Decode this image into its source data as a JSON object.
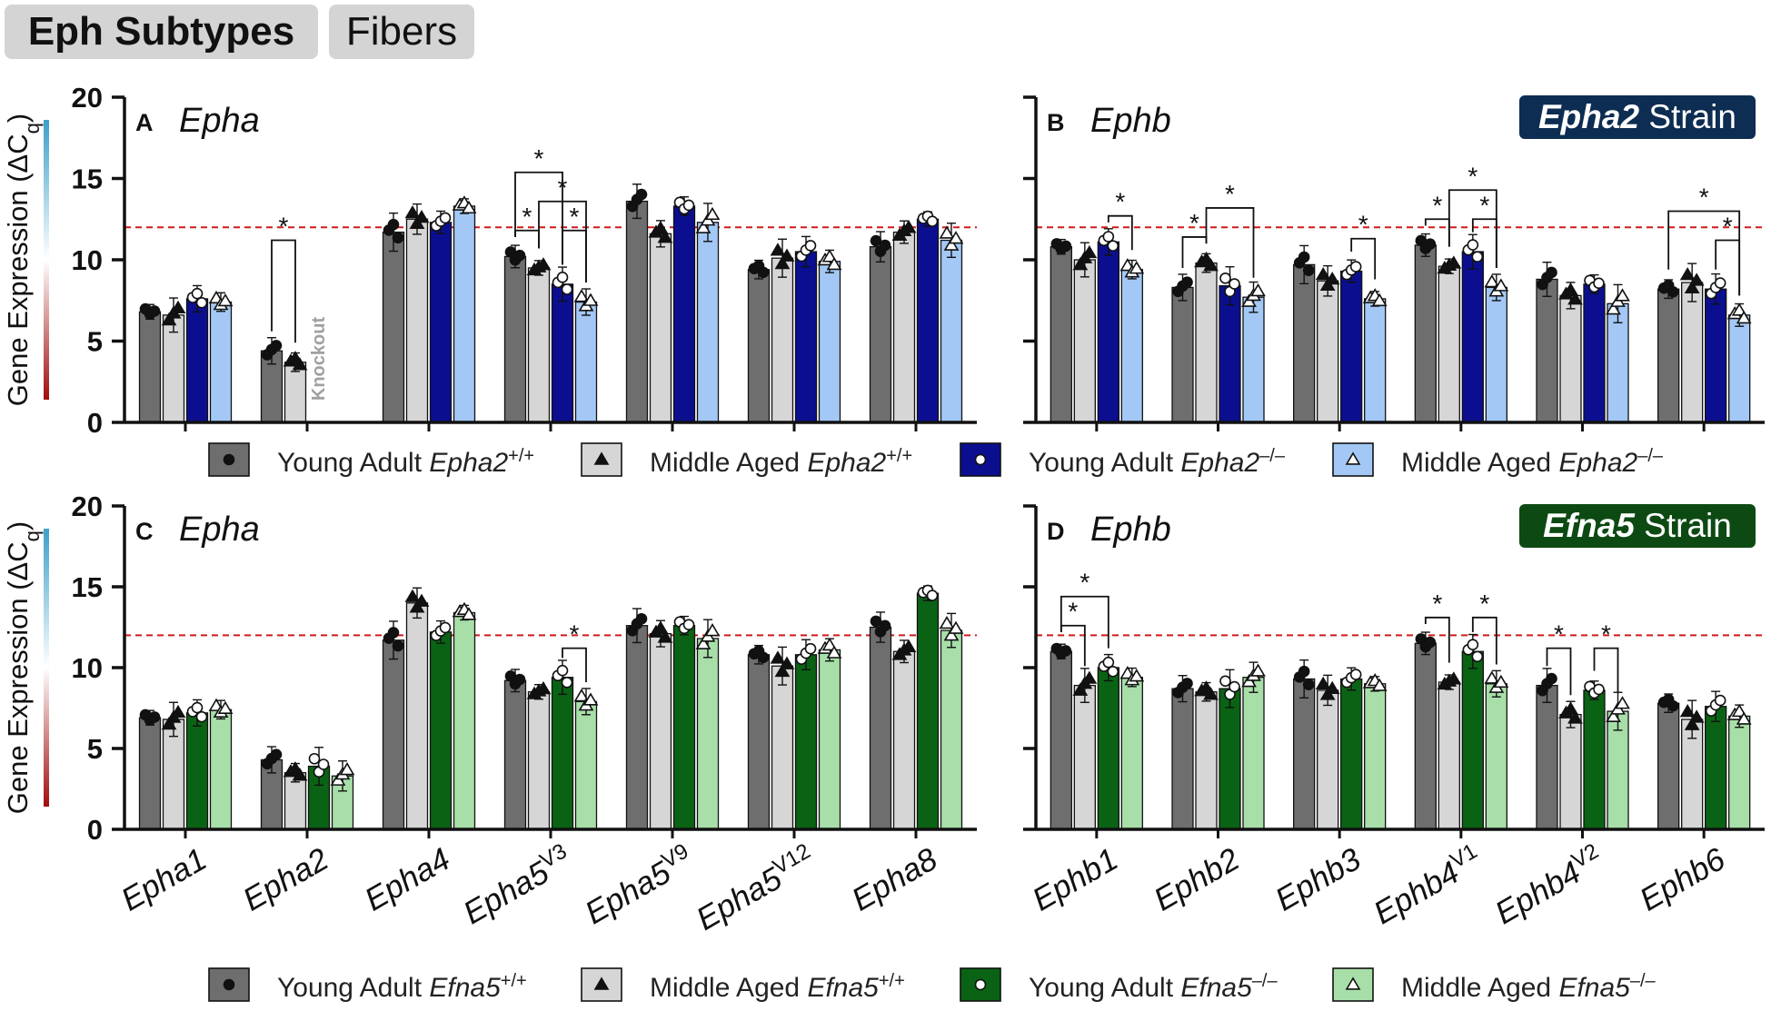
{
  "tabs": {
    "active": "Eph Subtypes",
    "other": "Fibers"
  },
  "threshold": 12,
  "y_label": "Gene Expression (ΔC",
  "y_label_sub": "q",
  "y_label_close": ")",
  "colors": {
    "young_wt": "#6e6e6e",
    "aged_wt": "#d6d6d6",
    "epha2_young_ko": "#0b0f8f",
    "epha2_aged_ko": "#a3c8f5",
    "efna5_young_ko": "#0a6314",
    "efna5_aged_ko": "#a8dfa9",
    "threshold": "#d11a1a",
    "epha2_badge": "#0d2d52",
    "efna5_badge": "#0d4a13"
  },
  "strain_badges": [
    {
      "bold": "Epha2",
      "rest": " Strain"
    },
    {
      "bold": "Efna5",
      "rest": " Strain"
    }
  ],
  "legends": [
    {
      "items": [
        {
          "pre": "Young Adult ",
          "gene": "Epha2",
          "sup": "+/+",
          "marker": "circle-dark"
        },
        {
          "pre": "Middle Aged ",
          "gene": "Epha2",
          "sup": "+/+",
          "marker": "triangle-dark"
        },
        {
          "pre": "Young Adult ",
          "gene": "Epha2",
          "sup": "–/–",
          "marker": "circle-white"
        },
        {
          "pre": "Middle Aged ",
          "gene": "Epha2",
          "sup": "–/–",
          "marker": "triangle-white"
        }
      ]
    },
    {
      "items": [
        {
          "pre": "Young Adult ",
          "gene": "Efna5",
          "sup": "+/+",
          "marker": "circle-dark"
        },
        {
          "pre": "Middle Aged ",
          "gene": "Efna5",
          "sup": "+/+",
          "marker": "triangle-dark"
        },
        {
          "pre": "Young Adult ",
          "gene": "Efna5",
          "sup": "–/–",
          "marker": "circle-white"
        },
        {
          "pre": "Middle Aged ",
          "gene": "Efna5",
          "sup": "–/–",
          "marker": "triangle-white"
        }
      ]
    }
  ],
  "chart_data": [
    {
      "panel": "A",
      "title": "Epha",
      "type": "bar",
      "strain": "Epha2",
      "ylim": [
        0,
        20
      ],
      "yticks": [
        0,
        5,
        10,
        15,
        20
      ],
      "categories": [
        {
          "base": "Epha1",
          "sup": ""
        },
        {
          "base": "Epha2",
          "sup": ""
        },
        {
          "base": "Epha4",
          "sup": ""
        },
        {
          "base": "Epha5",
          "sup": "V3"
        },
        {
          "base": "Epha5",
          "sup": "V9"
        },
        {
          "base": "Epha5",
          "sup": "V12"
        },
        {
          "base": "Epha8",
          "sup": ""
        }
      ],
      "series": [
        {
          "name": "Young Adult Epha2+/+",
          "values": [
            6.8,
            4.4,
            11.7,
            10.2,
            13.6,
            9.4,
            10.8
          ]
        },
        {
          "name": "Middle Aged Epha2+/+",
          "values": [
            6.6,
            3.7,
            12.5,
            9.5,
            11.6,
            10.1,
            11.7
          ]
        },
        {
          "name": "Young Adult Epha2–/–",
          "values": [
            7.6,
            null,
            12.3,
            8.5,
            13.3,
            10.5,
            12.5
          ]
        },
        {
          "name": "Middle Aged Epha2–/–",
          "values": [
            7.4,
            null,
            13.3,
            7.4,
            12.3,
            9.9,
            11.2
          ]
        }
      ],
      "annotations": [
        {
          "text": "Knockout",
          "category": "Epha2"
        },
        {
          "text": "*"
        }
      ]
    },
    {
      "panel": "B",
      "title": "Ephb",
      "type": "bar",
      "strain": "Epha2",
      "ylim": [
        0,
        20
      ],
      "yticks": [
        0,
        5,
        10,
        15,
        20
      ],
      "categories": [
        {
          "base": "Ephb1",
          "sup": ""
        },
        {
          "base": "Ephb2",
          "sup": ""
        },
        {
          "base": "Ephb3",
          "sup": ""
        },
        {
          "base": "Ephb4",
          "sup": "V1"
        },
        {
          "base": "Ephb4",
          "sup": "V2"
        },
        {
          "base": "Ephb6",
          "sup": ""
        }
      ],
      "series": [
        {
          "name": "Young Adult Epha2+/+",
          "values": [
            10.8,
            8.3,
            9.7,
            10.9,
            8.8,
            8.2
          ]
        },
        {
          "name": "Middle Aged Epha2+/+",
          "values": [
            10.0,
            9.8,
            8.7,
            9.6,
            7.8,
            8.6
          ]
        },
        {
          "name": "Young Adult Epha2–/–",
          "values": [
            11.1,
            8.4,
            9.3,
            10.5,
            8.5,
            8.2
          ]
        },
        {
          "name": "Middle Aged Epha2–/–",
          "values": [
            9.4,
            7.7,
            7.6,
            8.3,
            7.3,
            6.6
          ]
        }
      ]
    },
    {
      "panel": "C",
      "title": "Epha",
      "type": "bar",
      "strain": "Efna5",
      "ylim": [
        0,
        20
      ],
      "yticks": [
        0,
        5,
        10,
        15,
        20
      ],
      "categories": [
        {
          "base": "Epha1",
          "sup": ""
        },
        {
          "base": "Epha2",
          "sup": ""
        },
        {
          "base": "Epha4",
          "sup": ""
        },
        {
          "base": "Epha5",
          "sup": "V3"
        },
        {
          "base": "Epha5",
          "sup": "V9"
        },
        {
          "base": "Epha5",
          "sup": "V12"
        },
        {
          "base": "Epha8",
          "sup": ""
        }
      ],
      "series": [
        {
          "name": "Young Adult Efna5+/+",
          "values": [
            6.9,
            4.3,
            11.7,
            9.2,
            12.6,
            10.8,
            12.5
          ]
        },
        {
          "name": "Middle Aged Efna5+/+",
          "values": [
            6.8,
            3.5,
            14.0,
            8.5,
            12.1,
            10.1,
            11.0
          ]
        },
        {
          "name": "Young Adult Efna5–/–",
          "values": [
            7.2,
            3.9,
            12.2,
            9.4,
            12.6,
            10.8,
            14.6
          ]
        },
        {
          "name": "Middle Aged Efna5–/–",
          "values": [
            7.4,
            3.3,
            13.4,
            7.9,
            11.8,
            11.1,
            12.3
          ]
        }
      ]
    },
    {
      "panel": "D",
      "title": "Ephb",
      "type": "bar",
      "strain": "Efna5",
      "ylim": [
        0,
        20
      ],
      "yticks": [
        0,
        5,
        10,
        15,
        20
      ],
      "categories": [
        {
          "base": "Ephb1",
          "sup": ""
        },
        {
          "base": "Ephb2",
          "sup": ""
        },
        {
          "base": "Ephb3",
          "sup": ""
        },
        {
          "base": "Ephb4",
          "sup": "V1"
        },
        {
          "base": "Ephb4",
          "sup": "V2"
        },
        {
          "base": "Ephb6",
          "sup": ""
        }
      ],
      "series": [
        {
          "name": "Young Adult Efna5+/+",
          "values": [
            11.0,
            8.7,
            9.3,
            11.5,
            8.9,
            7.8
          ]
        },
        {
          "name": "Middle Aged Efna5+/+",
          "values": [
            8.9,
            8.5,
            8.6,
            9.1,
            7.1,
            6.8
          ]
        },
        {
          "name": "Young Adult Efna5–/–",
          "values": [
            10.0,
            8.7,
            9.3,
            11.0,
            8.6,
            7.6
          ]
        },
        {
          "name": "Middle Aged Efna5–/–",
          "values": [
            9.4,
            9.4,
            9.0,
            9.0,
            7.3,
            7.0
          ]
        }
      ]
    }
  ]
}
